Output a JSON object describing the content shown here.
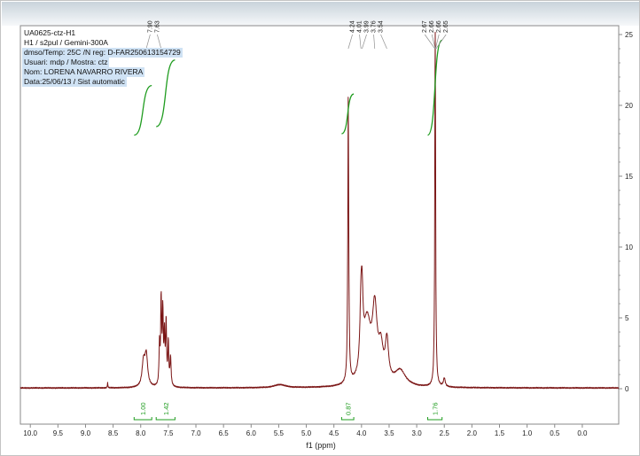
{
  "info": {
    "lines": [
      "UA0625-ctz-H1",
      "H1 / s2pul / Gemini-300A",
      "dmso/Temp: 25C /N reg: D-FAR250613154729",
      "Usuari: mdp / Mostra: ctz",
      "Nom: LORENA NAVARRO RIVERA",
      "Data:25/06/13 / Sist automatic"
    ]
  },
  "chart_data": {
    "type": "line",
    "title": "",
    "xlabel": "f1 (ppm)",
    "x_axis": {
      "min": -0.66,
      "max": 10.18,
      "tick_labels": [
        "10.0",
        "9.5",
        "9.0",
        "8.5",
        "8.0",
        "7.5",
        "7.0",
        "6.5",
        "6.0",
        "5.5",
        "5.0",
        "4.5",
        "4.0",
        "3.5",
        "3.0",
        "2.5",
        "2.0",
        "1.5",
        "1.0",
        "0.5",
        "0.0"
      ]
    },
    "y_axis": {
      "min": 0,
      "max": 25,
      "tick_values": [
        0,
        5,
        10,
        15,
        20,
        25
      ],
      "minor_step": 1,
      "side": "right"
    },
    "colors": {
      "spectrum": "#7a1414",
      "integral": "#1f9c1f",
      "axis": "#8a8a8a",
      "label_text": "#222222"
    },
    "baseline": 0.05,
    "peaks": [
      {
        "ppm": 8.6,
        "h": 0.35,
        "w": 0.006
      },
      {
        "ppm": 7.95,
        "h": 1.7,
        "w": 0.03
      },
      {
        "ppm": 7.9,
        "h": 2.2,
        "w": 0.03
      },
      {
        "ppm": 7.66,
        "h": 2.8,
        "w": 0.01
      },
      {
        "ppm": 7.63,
        "h": 6.0,
        "w": 0.01
      },
      {
        "ppm": 7.6,
        "h": 5.0,
        "w": 0.01
      },
      {
        "ppm": 7.57,
        "h": 3.4,
        "w": 0.01
      },
      {
        "ppm": 7.54,
        "h": 4.4,
        "w": 0.01
      },
      {
        "ppm": 7.5,
        "h": 3.0,
        "w": 0.01
      },
      {
        "ppm": 7.46,
        "h": 2.0,
        "w": 0.012
      },
      {
        "ppm": 5.48,
        "h": 0.22,
        "w": 0.12
      },
      {
        "ppm": 4.24,
        "h": 20.2,
        "w": 0.01
      },
      {
        "ppm": 4.01,
        "h": 3.8,
        "w": 0.022
      },
      {
        "ppm": 3.99,
        "h": 4.0,
        "w": 0.022
      },
      {
        "ppm": 3.9,
        "h": 4.3,
        "w": 0.085
      },
      {
        "ppm": 3.76,
        "h": 4.8,
        "w": 0.05
      },
      {
        "ppm": 3.65,
        "h": 2.2,
        "w": 0.05
      },
      {
        "ppm": 3.54,
        "h": 2.8,
        "w": 0.035
      },
      {
        "ppm": 3.3,
        "h": 1.1,
        "w": 0.12
      },
      {
        "ppm": 2.665,
        "h": 25.2,
        "w": 0.009
      },
      {
        "ppm": 2.5,
        "h": 0.6,
        "w": 0.02
      }
    ],
    "peak_label_groups": [
      {
        "labels": [
          {
            "text": "7.90",
            "ppm": 7.9
          },
          {
            "text": "7.63",
            "ppm": 7.63
          }
        ]
      },
      {
        "labels": [
          {
            "text": "4.24",
            "ppm": 4.24
          },
          {
            "text": "4.01",
            "ppm": 4.01
          },
          {
            "text": "3.99",
            "ppm": 3.99
          },
          {
            "text": "3.76",
            "ppm": 3.76
          },
          {
            "text": "3.54",
            "ppm": 3.54
          }
        ]
      },
      {
        "labels": [
          {
            "text": "2.67",
            "ppm": 2.67
          },
          {
            "text": "2.66",
            "ppm": 2.663
          },
          {
            "text": "2.66",
            "ppm": 2.66
          },
          {
            "text": "2.65",
            "ppm": 2.65
          }
        ]
      }
    ],
    "integrals": [
      {
        "value": "1.00",
        "ppm_start": 8.12,
        "ppm_end": 7.8,
        "y_start": 17.9,
        "y_end": 21.4
      },
      {
        "value": "1.42",
        "ppm_start": 7.72,
        "ppm_end": 7.38,
        "y_start": 18.5,
        "y_end": 23.2
      },
      {
        "value": "0.87",
        "ppm_start": 4.36,
        "ppm_end": 4.14,
        "y_start": 18.0,
        "y_end": 20.8
      },
      {
        "value": "1.76",
        "ppm_start": 2.8,
        "ppm_end": 2.54,
        "y_start": 17.9,
        "y_end": 24.6
      }
    ]
  }
}
